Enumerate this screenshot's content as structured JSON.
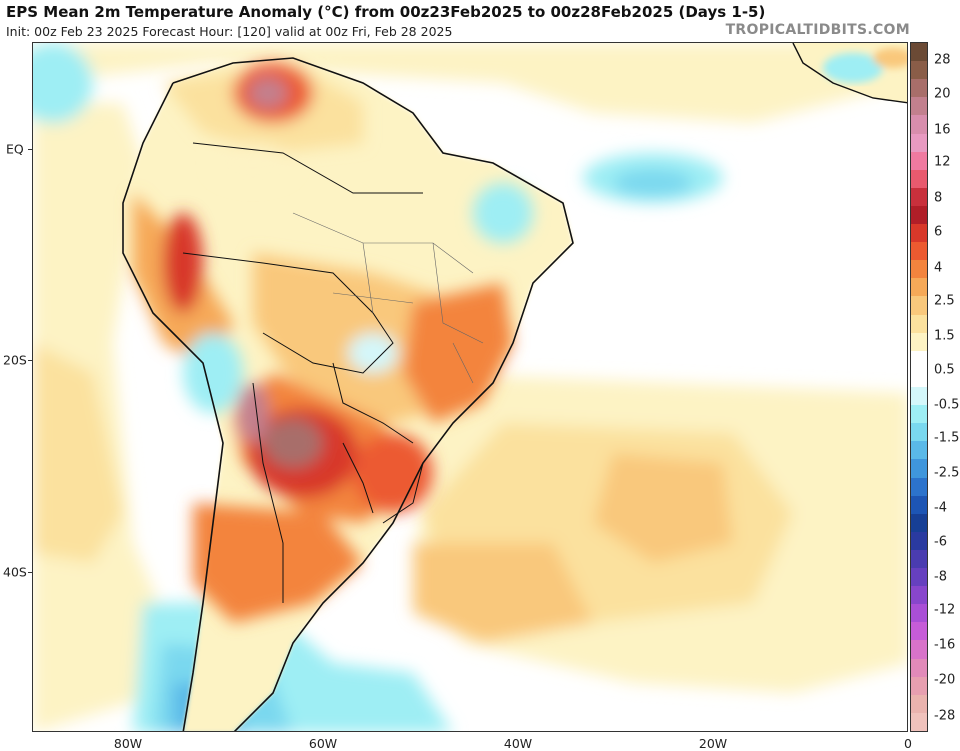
{
  "header": {
    "title": "EPS Mean 2m Temperature Anomaly (°C) from 00z23Feb2025 to 00z28Feb2025 (Days 1-5)",
    "subtitle": "Init: 00z Feb 23 2025   Forecast Hour: [120]   valid at 00z Fri, Feb 28 2025",
    "credit": "TROPICALTIDBITS.COM"
  },
  "map": {
    "lat_labels": [
      "EQ",
      "20S",
      "40S"
    ],
    "lon_labels": [
      "80W",
      "60W",
      "40W",
      "20W",
      "0"
    ]
  },
  "colorbar": {
    "labels": [
      "28",
      "20",
      "16",
      "12",
      "8",
      "6",
      "4",
      "2.5",
      "1.5",
      "0.5",
      "-0.5",
      "-1.5",
      "-2.5",
      "-4",
      "-6",
      "-8",
      "-12",
      "-16",
      "-20",
      "-28"
    ],
    "colors": [
      "#6b4a35",
      "#8a5d48",
      "#a86e6a",
      "#c2808e",
      "#d88ead",
      "#e89ac1",
      "#f07aa0",
      "#e85a6e",
      "#c8303c",
      "#b01e28",
      "#d8382a",
      "#ec5a30",
      "#f3843e",
      "#f6a958",
      "#f9c87c",
      "#fbe19e",
      "#fdf3c4",
      "#ffffff",
      "#ffffff",
      "#d4f7fa",
      "#9eeef4",
      "#7ad8ef",
      "#5ab9e8",
      "#3f96dc",
      "#2c73cc",
      "#1d55b4",
      "#173f95",
      "#2a3aa0",
      "#4a3cb0",
      "#6640bf",
      "#8846cc",
      "#a94fd6",
      "#c65cd8",
      "#d873c9",
      "#e18ab9",
      "#e79fb0",
      "#eab3ae",
      "#f0c2bc"
    ]
  }
}
